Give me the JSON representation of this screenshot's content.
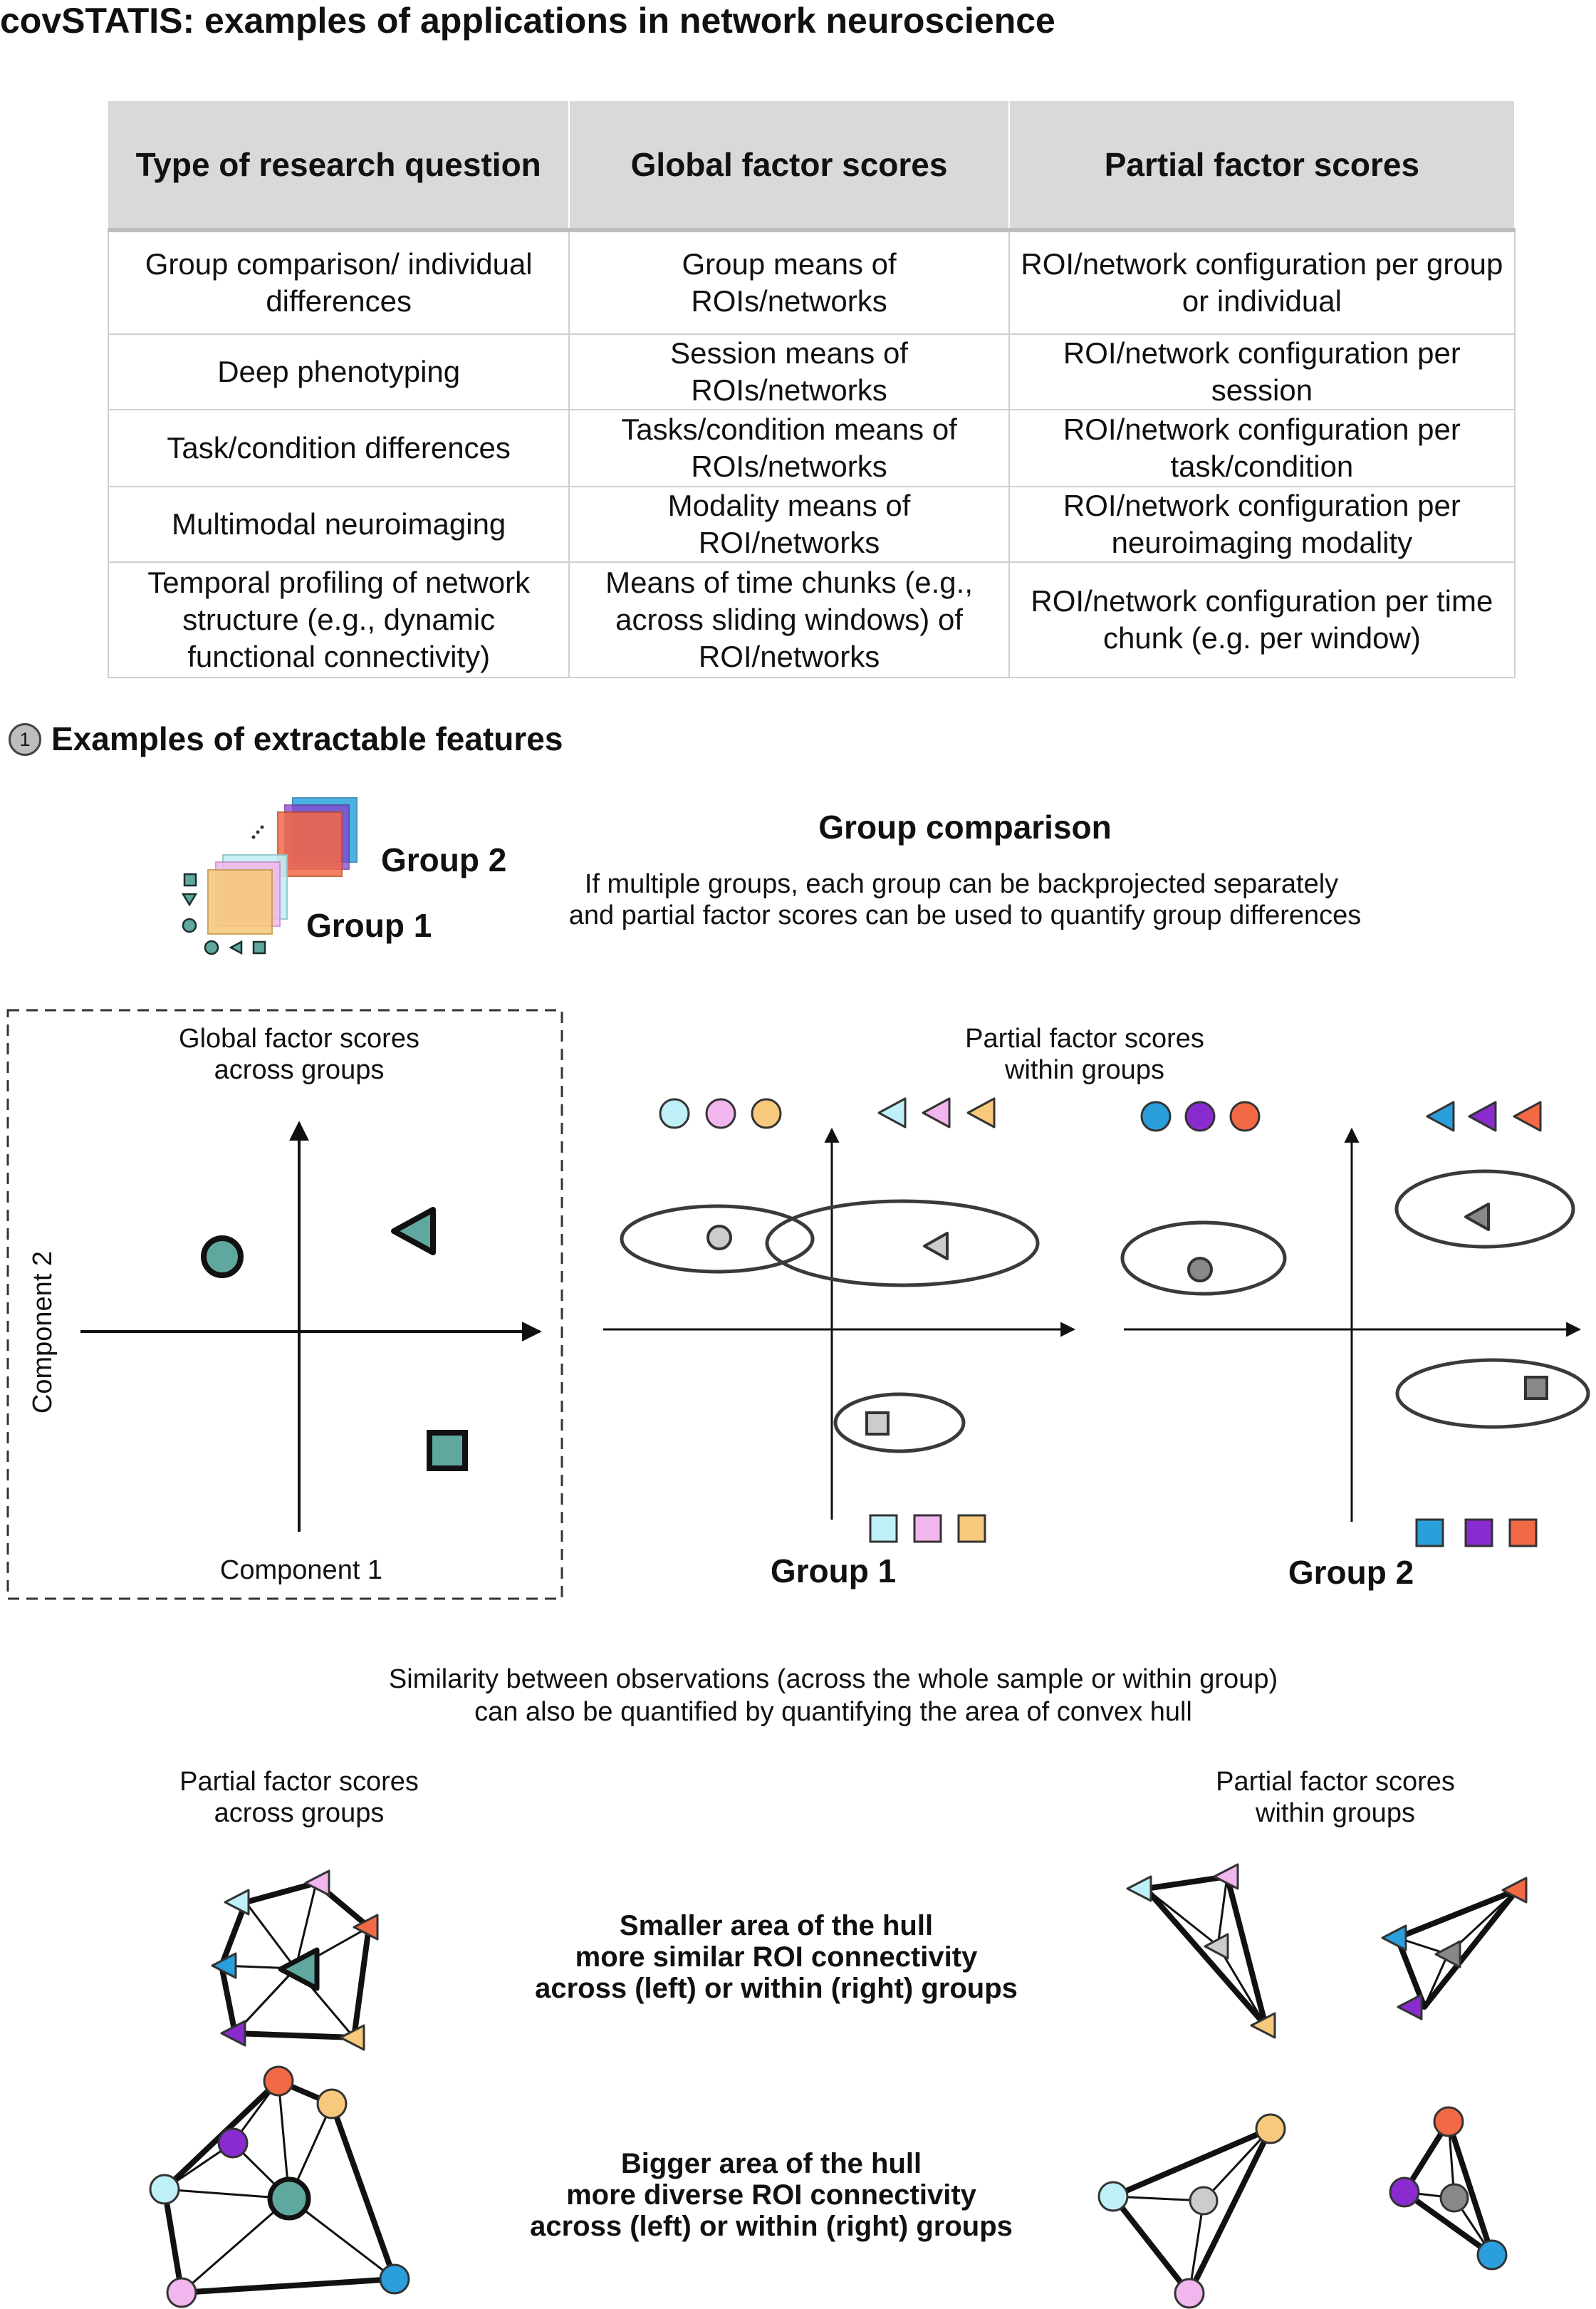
{
  "title": "covSTATIS: examples of applications in network neuroscience",
  "table": {
    "headers": [
      "Type of research question",
      "Global factor scores",
      "Partial factor scores"
    ],
    "rows": [
      [
        "Group comparison/ individual differences",
        "Group means of ROIs/networks",
        "ROI/network configuration per group or individual"
      ],
      [
        "Deep phenotyping",
        "Session means of ROIs/networks",
        "ROI/network configuration per session"
      ],
      [
        "Task/condition differences",
        "Tasks/condition means of ROIs/networks",
        "ROI/network configuration per task/condition"
      ],
      [
        "Multimodal neuroimaging",
        "Modality means of ROI/networks",
        "ROI/network configuration per neuroimaging modality"
      ],
      [
        "Temporal profiling of network structure (e.g., dynamic functional connectivity)",
        "Means of time chunks (e.g., across sliding windows) of ROI/networks",
        "ROI/network configuration per time chunk (e.g. per window)"
      ]
    ]
  },
  "section": {
    "number": "1",
    "title": "Examples of extractable features"
  },
  "group_icon": {
    "group1_label": "Group 1",
    "group2_label": "Group 2"
  },
  "group_comparison": {
    "heading": "Group comparison",
    "description_line1": "If multiple groups, each group can be backprojected separately",
    "description_line2": "and partial factor scores can be used to quantify group differences"
  },
  "global_panel": {
    "title_line1": "Global factor scores",
    "title_line2": "across groups",
    "xlabel": "Component 1",
    "ylabel": "Component 2"
  },
  "partial_panel": {
    "title_line1": "Partial factor scores",
    "title_line2": "within groups",
    "group1_label": "Group 1",
    "group2_label": "Group 2"
  },
  "hull_intro": {
    "line1": "Similarity between observations (across the whole sample or within group)",
    "line2": "can also be quantified by quantifying the area of convex hull"
  },
  "hull_left": {
    "title_line1": "Partial factor scores",
    "title_line2": "across groups"
  },
  "hull_right": {
    "title_line1": "Partial factor scores",
    "title_line2": "within groups"
  },
  "hull_small": {
    "line1": "Smaller area of the hull",
    "line2": "more similar ROI connectivity",
    "line3": "across (left) or within (right) groups"
  },
  "hull_big": {
    "line1": "Bigger area of the hull",
    "line2": "more diverse ROI connectivity",
    "line3": "across (left) or within (right) groups"
  },
  "colors": {
    "teal": "#5fa8a0",
    "group1_cyan": "#bff0f7",
    "group1_pink": "#f2b6ee",
    "group1_yellow": "#f7c97c",
    "group2_blue": "#2a9fdc",
    "group2_purple": "#8a2bd0",
    "group2_orange": "#f26a45",
    "partial_grey": "#cccccc",
    "partial_dark_grey": "#888888"
  }
}
